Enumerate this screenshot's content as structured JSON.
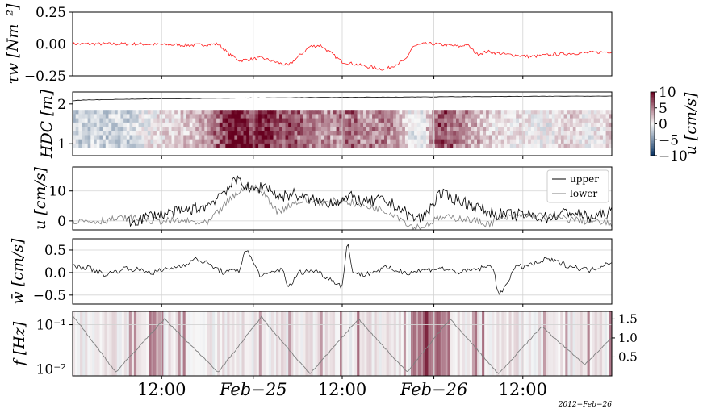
{
  "figure": {
    "type": "line",
    "colors": {
      "red_line": "#ff1a1a",
      "black_line": "#000000",
      "gray_line": "#7f7f7f",
      "grid": "#d3d3d3"
    },
    "x_ticks": [
      "12:00",
      "Feb−25",
      "12:00",
      "Feb−26",
      "12:00"
    ],
    "offset_text": "2012−Feb−26",
    "colormap": "RdBu_r"
  },
  "chart_data": [
    {
      "type": "line",
      "panel": "tau",
      "ylabel": "τw [Nm⁻²]",
      "ylim": [
        -0.25,
        0.25
      ],
      "yticks": [
        "0.25",
        "0.00",
        "−0.25"
      ],
      "grid": true,
      "series": [
        {
          "color": "#ff1a1a",
          "x": [
            0.0,
            0.12,
            0.22,
            0.27,
            0.29,
            0.31,
            0.35,
            0.4,
            0.44,
            0.46,
            0.5,
            0.55,
            0.58,
            0.62,
            0.63,
            0.65,
            0.67,
            0.72,
            0.73,
            0.75,
            0.77,
            0.8,
            0.85,
            0.9,
            0.95,
            1.0
          ],
          "values": [
            0.0,
            0.0,
            -0.01,
            0.0,
            -0.08,
            -0.13,
            -0.11,
            -0.17,
            -0.02,
            -0.01,
            -0.14,
            -0.18,
            -0.2,
            -0.12,
            -0.02,
            0.0,
            0.0,
            -0.02,
            0.0,
            -0.08,
            -0.06,
            -0.08,
            -0.1,
            -0.08,
            -0.07,
            -0.06
          ]
        }
      ]
    },
    {
      "type": "heatmap",
      "panel": "hdc",
      "ylabel": "HDC [m]",
      "ylim": [
        0.7,
        2.3
      ],
      "yticks": [
        "2",
        "1"
      ],
      "colorbar": {
        "label": "u [cm/s]",
        "ticks": [
          "10",
          "5",
          "0",
          "−5",
          "−10"
        ],
        "range": [
          -10,
          10
        ]
      },
      "surface_line": {
        "color": "#000000",
        "start": 2.08,
        "end": 2.2
      }
    },
    {
      "type": "line",
      "panel": "u",
      "ylabel": "u [cm/s]",
      "ylim": [
        -3,
        18
      ],
      "yticks": [
        "10",
        "0"
      ],
      "legend": {
        "position": "top-right",
        "entries": [
          "upper",
          "lower"
        ]
      },
      "series": [
        {
          "name": "upper",
          "color": "#000000",
          "x": [
            0.1,
            0.15,
            0.2,
            0.25,
            0.28,
            0.31,
            0.33,
            0.36,
            0.38,
            0.41,
            0.44,
            0.47,
            0.5,
            0.52,
            0.54,
            0.57,
            0.6,
            0.63,
            0.65,
            0.68,
            0.7,
            0.73,
            0.77,
            0.8,
            0.84,
            0.88,
            0.92,
            0.96,
            1.0
          ],
          "values": [
            -1,
            2,
            3,
            5,
            10,
            14,
            10,
            12,
            8,
            9,
            7,
            6,
            7,
            8,
            6,
            7,
            5,
            1,
            1,
            9,
            8,
            6,
            3,
            2,
            2,
            1,
            3,
            1,
            3
          ]
        },
        {
          "name": "lower",
          "color": "#7f7f7f",
          "x": [
            0.0,
            0.05,
            0.1,
            0.15,
            0.2,
            0.25,
            0.28,
            0.31,
            0.33,
            0.36,
            0.38,
            0.41,
            0.44,
            0.47,
            0.5,
            0.54,
            0.57,
            0.6,
            0.63,
            0.65,
            0.68,
            0.72,
            0.77,
            0.8,
            0.85,
            0.9,
            0.95,
            1.0
          ],
          "values": [
            0,
            0,
            1,
            0,
            0,
            -1,
            5,
            10,
            12,
            8,
            3,
            6,
            7,
            6,
            7,
            5,
            4,
            2,
            -2,
            -2,
            1,
            1,
            -1,
            1,
            2,
            1,
            0,
            -1
          ]
        }
      ]
    },
    {
      "type": "line",
      "panel": "w",
      "ylabel": "w̄ [cm/s]",
      "ylim": [
        -0.7,
        0.75
      ],
      "yticks": [
        "0.5",
        "0.0",
        "−0.5"
      ],
      "series": [
        {
          "color": "#000000",
          "x": [
            0.0,
            0.03,
            0.06,
            0.1,
            0.15,
            0.2,
            0.23,
            0.25,
            0.28,
            0.31,
            0.32,
            0.35,
            0.39,
            0.4,
            0.42,
            0.45,
            0.5,
            0.51,
            0.52,
            0.54,
            0.58,
            0.62,
            0.68,
            0.72,
            0.78,
            0.79,
            0.82,
            0.86,
            0.88,
            0.92,
            0.96,
            1.0
          ],
          "values": [
            0.15,
            0.1,
            -0.05,
            0.1,
            0.0,
            0.15,
            0.3,
            0.2,
            0.0,
            0.05,
            0.55,
            -0.1,
            0.1,
            -0.35,
            0.0,
            0.05,
            -0.3,
            0.7,
            0.0,
            -0.05,
            0.1,
            0.0,
            0.1,
            0.0,
            0.15,
            -0.55,
            0.1,
            0.2,
            0.3,
            0.15,
            0.05,
            0.25
          ]
        }
      ]
    },
    {
      "type": "line",
      "panel": "f",
      "ylabel": "f [Hz]",
      "yscale": "log",
      "ylim": [
        0.007,
        0.2
      ],
      "yticks": [
        "10⁻¹",
        "10⁻²"
      ],
      "y2lim": [
        0,
        1.7
      ],
      "y2ticks": [
        "1.5",
        "1.0",
        "0.5"
      ],
      "series": [
        {
          "color": "#7f7f7f",
          "axis": "right",
          "x": [
            0.0,
            0.08,
            0.17,
            0.27,
            0.35,
            0.44,
            0.53,
            0.62,
            0.7,
            0.79,
            0.87,
            0.95,
            1.0
          ],
          "values": [
            1.6,
            0.1,
            1.5,
            0.1,
            1.55,
            0.05,
            1.5,
            0.1,
            1.5,
            0.05,
            1.3,
            0.3,
            1.0
          ]
        }
      ]
    }
  ]
}
